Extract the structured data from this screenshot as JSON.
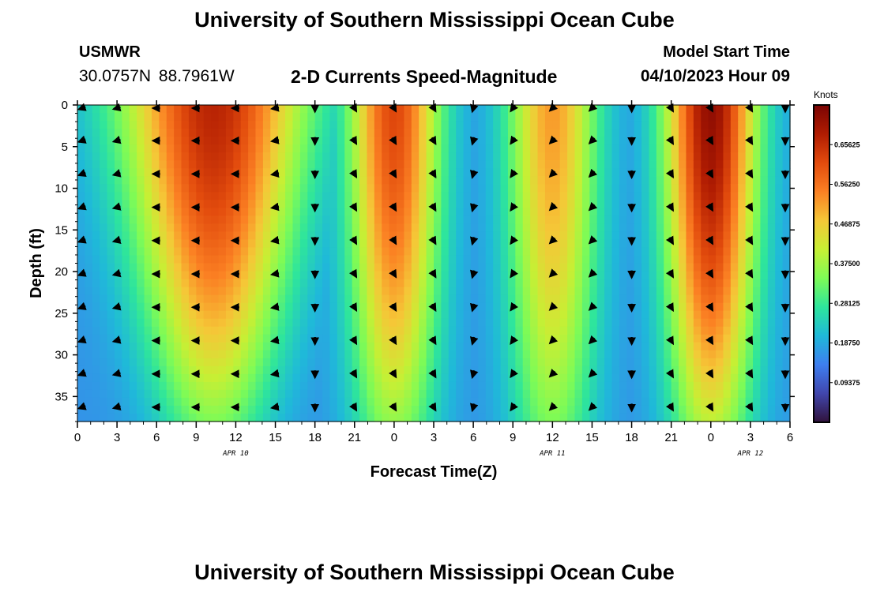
{
  "header": {
    "title": "University of Southern Mississippi Ocean Cube",
    "station": "USMWR",
    "coords": "30.0757N  88.7961W",
    "subtitle": "2-D Currents Speed-Magnitude",
    "model_label": "Model Start Time",
    "model_time": "04/10/2023 Hour 09"
  },
  "footer": {
    "title": "University of Southern Mississippi Ocean Cube"
  },
  "colors": {
    "cmap": [
      "#30123b",
      "#4146ad",
      "#3e7ff0",
      "#1fb9d9",
      "#2ee59c",
      "#7efb56",
      "#c7ef34",
      "#f5c737",
      "#fb8023",
      "#e24b0d",
      "#b01c02",
      "#7a0403"
    ],
    "arrow": "#000000"
  },
  "chart_data": {
    "type": "heatmap",
    "title": "2-D Currents Speed-Magnitude",
    "xlabel": "Forecast Time(Z)",
    "ylabel": "Depth (ft)",
    "xlim": [
      0,
      54
    ],
    "ylim": [
      0,
      38
    ],
    "x_ticks": [
      0,
      3,
      6,
      9,
      12,
      15,
      18,
      21,
      24,
      27,
      30,
      33,
      36,
      39,
      42,
      45,
      48,
      51,
      54
    ],
    "x_tick_labels": [
      "0",
      "3",
      "6",
      "9",
      "12",
      "15",
      "18",
      "21",
      "0",
      "3",
      "6",
      "9",
      "12",
      "15",
      "18",
      "21",
      "0",
      "3",
      "6"
    ],
    "y_ticks": [
      0,
      5,
      10,
      15,
      20,
      25,
      30,
      35
    ],
    "y_tick_labels": [
      "0",
      "5",
      "10",
      "15",
      "20",
      "25",
      "30",
      "35"
    ],
    "date_labels": [
      {
        "hour": 12,
        "text": "APR 10"
      },
      {
        "hour": 36,
        "text": "APR 11"
      },
      {
        "hour": 51,
        "text": "APR 12"
      }
    ],
    "colorbar": {
      "label": "Knots",
      "min": 0,
      "max": 0.75,
      "ticks": [
        "0.65625",
        "0.56250",
        "0.46875",
        "0.37500",
        "0.28125",
        "0.18750",
        "0.09375"
      ],
      "tick_values": [
        0.65625,
        0.5625,
        0.46875,
        0.375,
        0.28125,
        0.1875,
        0.09375
      ]
    },
    "peaks": [
      {
        "center_hour": 10.3,
        "surface_max": 0.67,
        "deep_max": 0.34,
        "deep_width": 4.5,
        "extra": 2.5
      },
      {
        "center_hour": 24.0,
        "surface_max": 0.62,
        "deep_max": 0.36,
        "deep_width": 3.3,
        "extra": 0.2
      },
      {
        "center_hour": 36.0,
        "surface_max": 0.52,
        "deep_max": 0.34,
        "deep_width": 3.3,
        "extra": 0.2
      },
      {
        "center_hour": 48.0,
        "surface_max": 0.72,
        "deep_max": 0.4,
        "deep_width": 3.3,
        "extra": 0.2
      }
    ],
    "arrow_hours": [
      0,
      3,
      6,
      9,
      12,
      15,
      18,
      21,
      24,
      27,
      30,
      33,
      36,
      39,
      42,
      45,
      48,
      51,
      54
    ],
    "arrow_depths": [
      0,
      4,
      8,
      12,
      16,
      20,
      24,
      28,
      32,
      36
    ],
    "arrow_directions_deg": [
      200,
      195,
      180,
      180,
      180,
      190,
      270,
      300,
      300,
      300,
      255,
      235,
      225,
      225,
      270,
      300,
      300,
      300,
      270
    ]
  }
}
